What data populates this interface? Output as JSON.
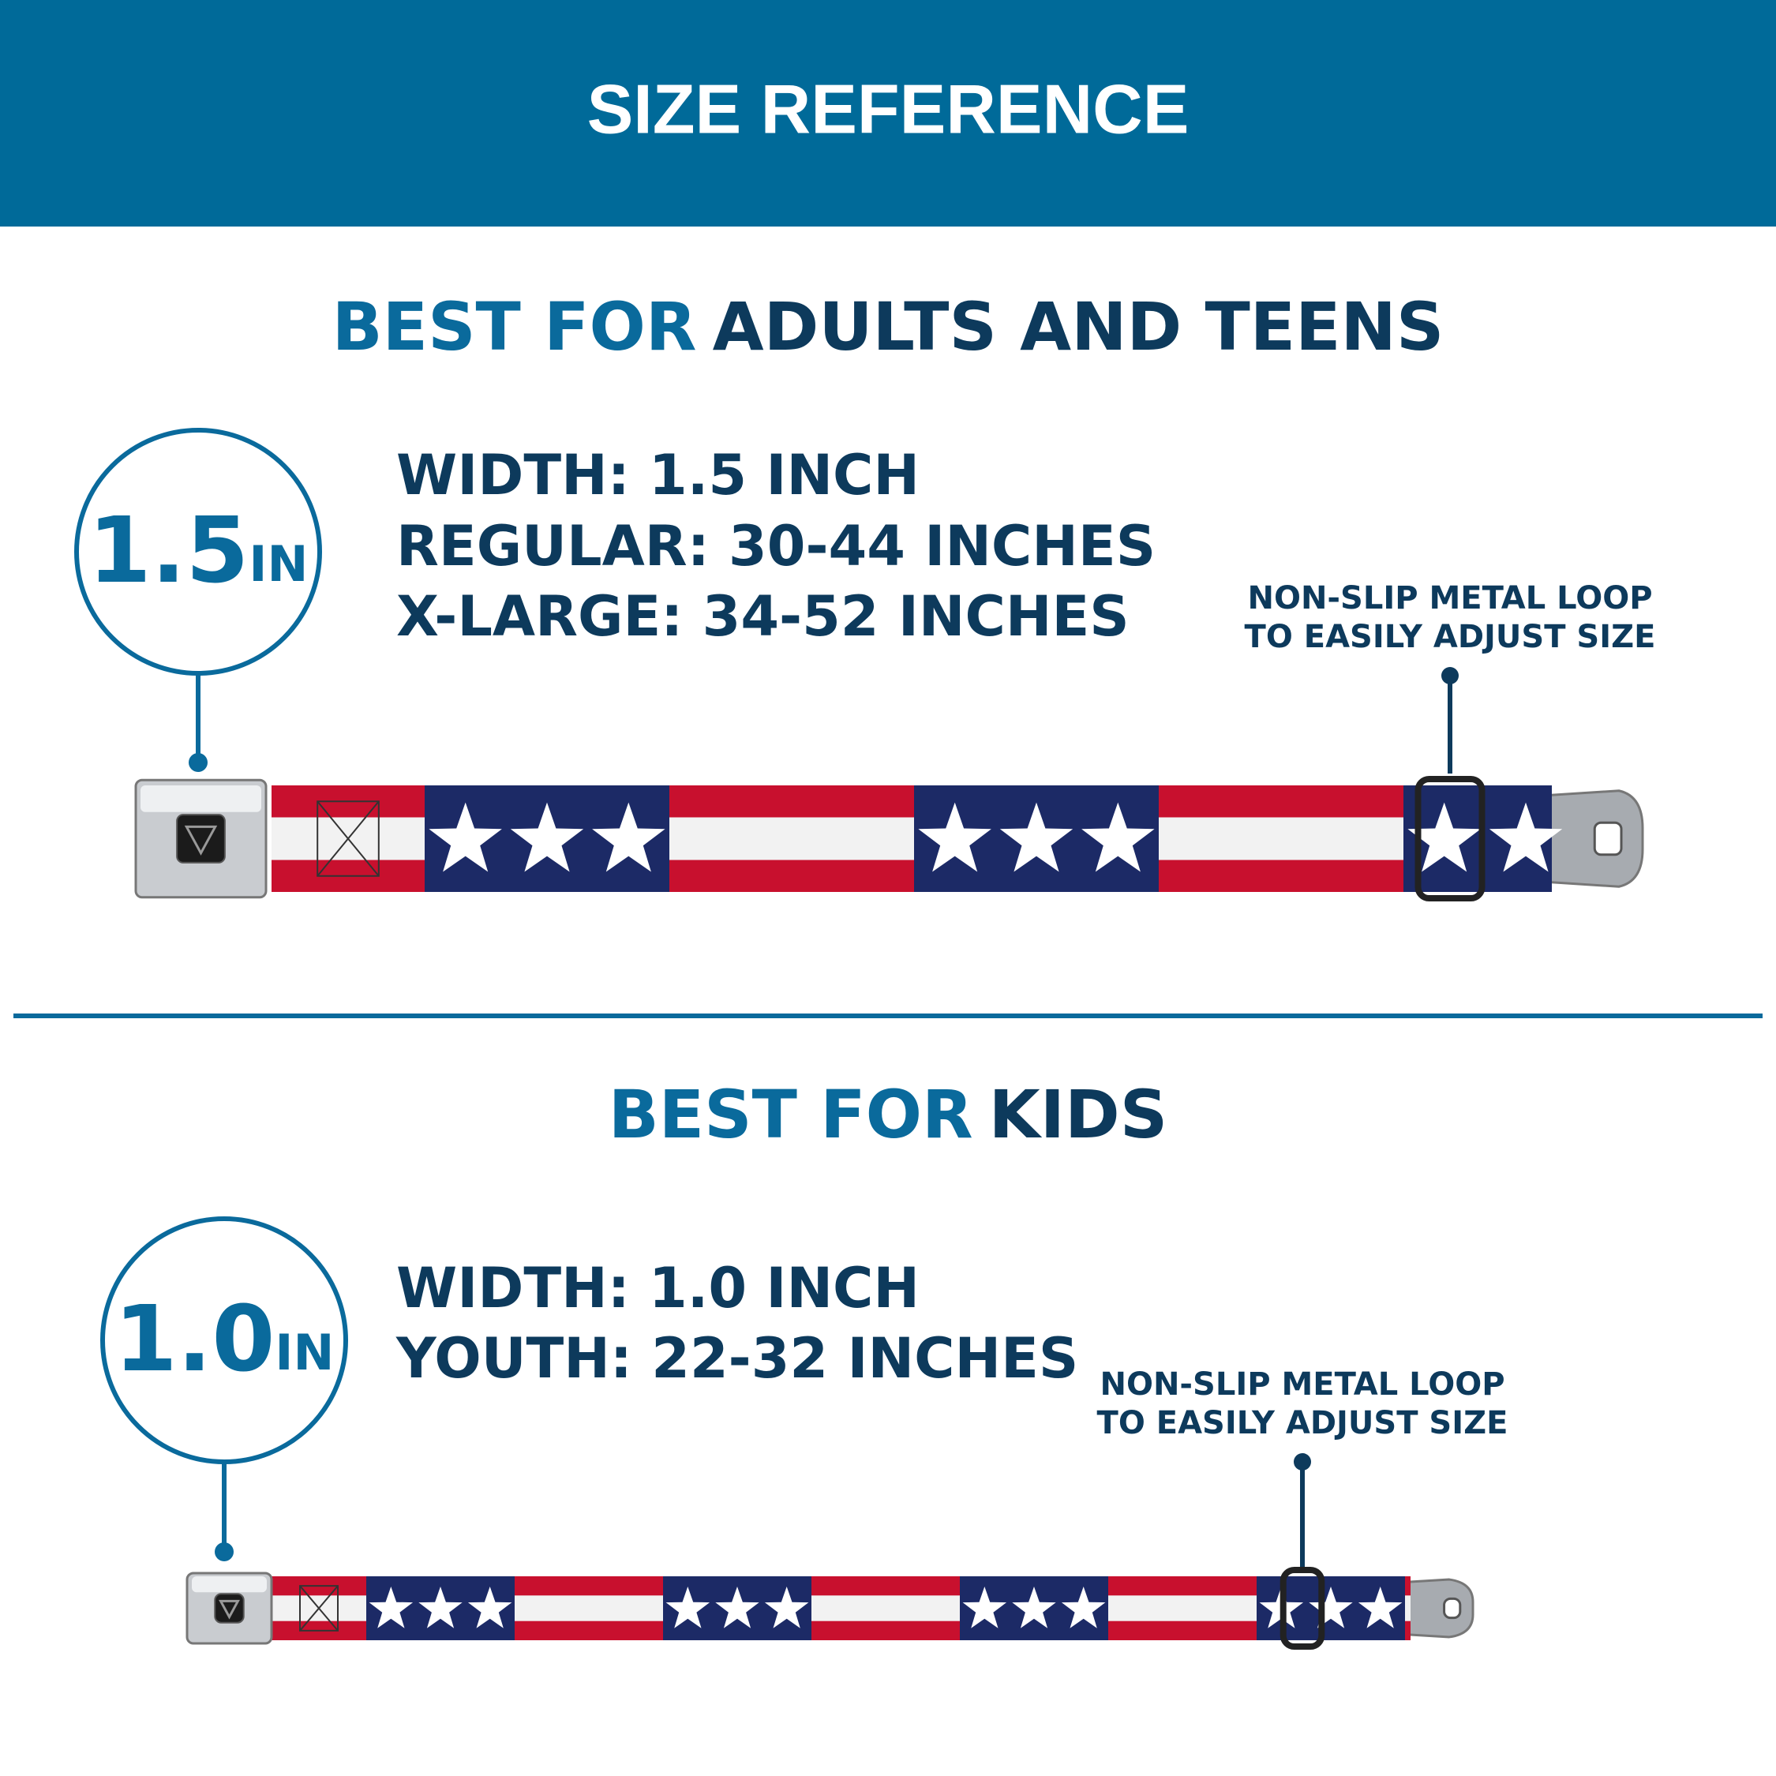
{
  "header": {
    "title": "SIZE REFERENCE"
  },
  "sections": [
    {
      "heading": {
        "accent": "BEST FOR",
        "main": "ADULTS AND TEENS"
      },
      "badge": {
        "value": "1.5",
        "unit": "IN"
      },
      "specs": [
        "WIDTH: 1.5 INCH",
        "REGULAR: 30-44 INCHES",
        "X-LARGE: 34-52 INCHES"
      ],
      "callout": [
        "NON-SLIP METAL LOOP",
        "TO EASILY ADJUST SIZE"
      ]
    },
    {
      "heading": {
        "accent": "BEST FOR",
        "main": "KIDS"
      },
      "badge": {
        "value": "1.0",
        "unit": "IN"
      },
      "specs": [
        "WIDTH: 1.0 INCH",
        "YOUTH: 22-32 INCHES"
      ],
      "callout": [
        "NON-SLIP METAL LOOP",
        "TO EASILY ADJUST SIZE"
      ]
    }
  ]
}
